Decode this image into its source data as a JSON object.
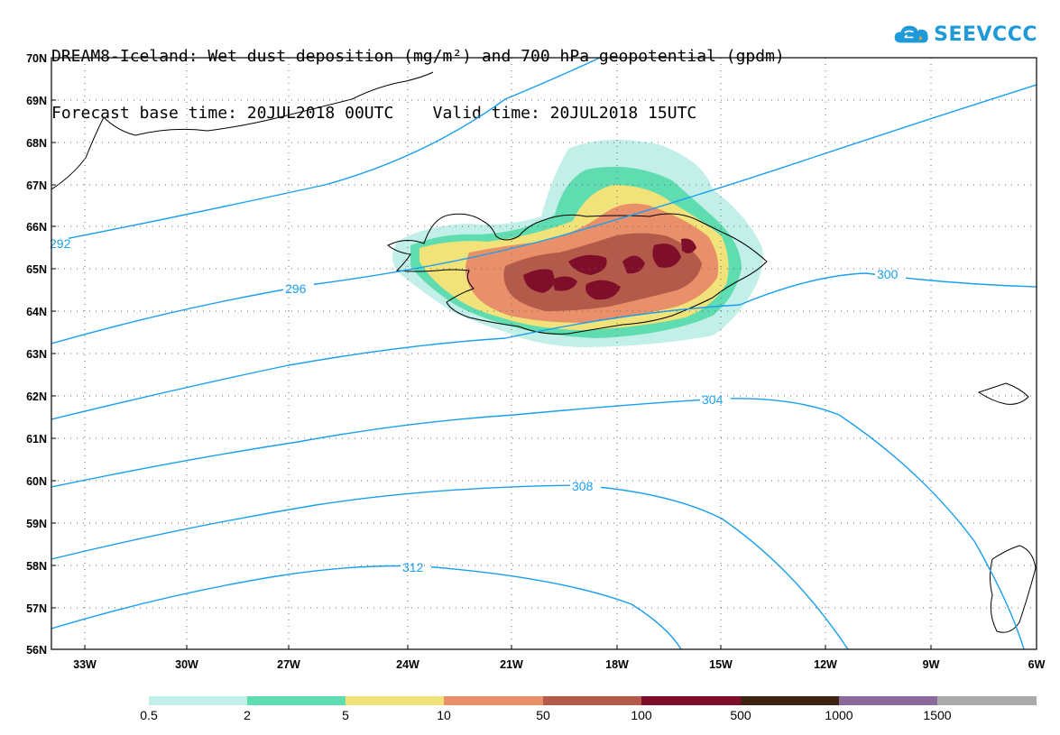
{
  "title": {
    "line1": "DREAM8-Iceland: Wet dust deposition (mg/m²) and 700 hPa geopotential (gpdm)",
    "line2": "Forecast base time: 20JUL2018 00UTC    Valid time: 20JUL2018 15UTC"
  },
  "logo": {
    "text": "SEEVCCC",
    "icon": "cloud-icon"
  },
  "map": {
    "lat_labels": [
      "70N",
      "69N",
      "68N",
      "67N",
      "66N",
      "65N",
      "64N",
      "63N",
      "62N",
      "61N",
      "60N",
      "59N",
      "58N",
      "57N",
      "56N"
    ],
    "lon_labels": [
      "33W",
      "30W",
      "27W",
      "24W",
      "21W",
      "18W",
      "15W",
      "12W",
      "9W",
      "6W"
    ],
    "contour_labels": [
      "292",
      "296",
      "300",
      "304",
      "308",
      "312"
    ],
    "contour_color": "#1a9ff0"
  },
  "legend": {
    "labels": [
      "0.5",
      "2",
      "5",
      "10",
      "50",
      "100",
      "500",
      "1000",
      "1500"
    ],
    "colors": [
      "#c2efe8",
      "#5fdcb0",
      "#f2e27a",
      "#e9906a",
      "#b45a4a",
      "#7e0e2a",
      "#3e2410",
      "#8a6a9a",
      "#aaaaaa"
    ]
  }
}
